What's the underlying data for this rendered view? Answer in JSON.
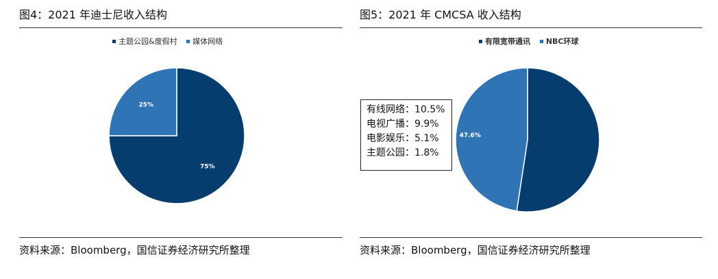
{
  "colors": {
    "dark_blue": "#053e6e",
    "mid_blue": "#2f74b5"
  },
  "chart_data": [
    {
      "type": "pie",
      "title": "图4：2021 年迪士尼收入结构",
      "categories": [
        "主题公园&度假村",
        "媒体网络"
      ],
      "values": [
        75,
        25
      ],
      "data_labels": [
        "75%",
        "25%"
      ],
      "colors": [
        "#053e6e",
        "#2f74b5"
      ],
      "legend": "top",
      "source": "资料来源：Bloomberg，国信证券经济研究所整理"
    },
    {
      "type": "pie",
      "title": "图5：2021 年 CMCSA 收入结构",
      "categories": [
        "有限宽带通讯",
        "NBC环球"
      ],
      "values": [
        52.4,
        47.6
      ],
      "data_labels": [
        "",
        "47.6%"
      ],
      "colors": [
        "#053e6e",
        "#2f74b5"
      ],
      "legend": "top",
      "annotation": [
        "有线网络：10.5%",
        "电视广播：9.9%",
        "电影娱乐：5.1%",
        "主题公园：1.8%"
      ],
      "source": "资料来源：Bloomberg，国信证券经济研究所整理"
    }
  ]
}
